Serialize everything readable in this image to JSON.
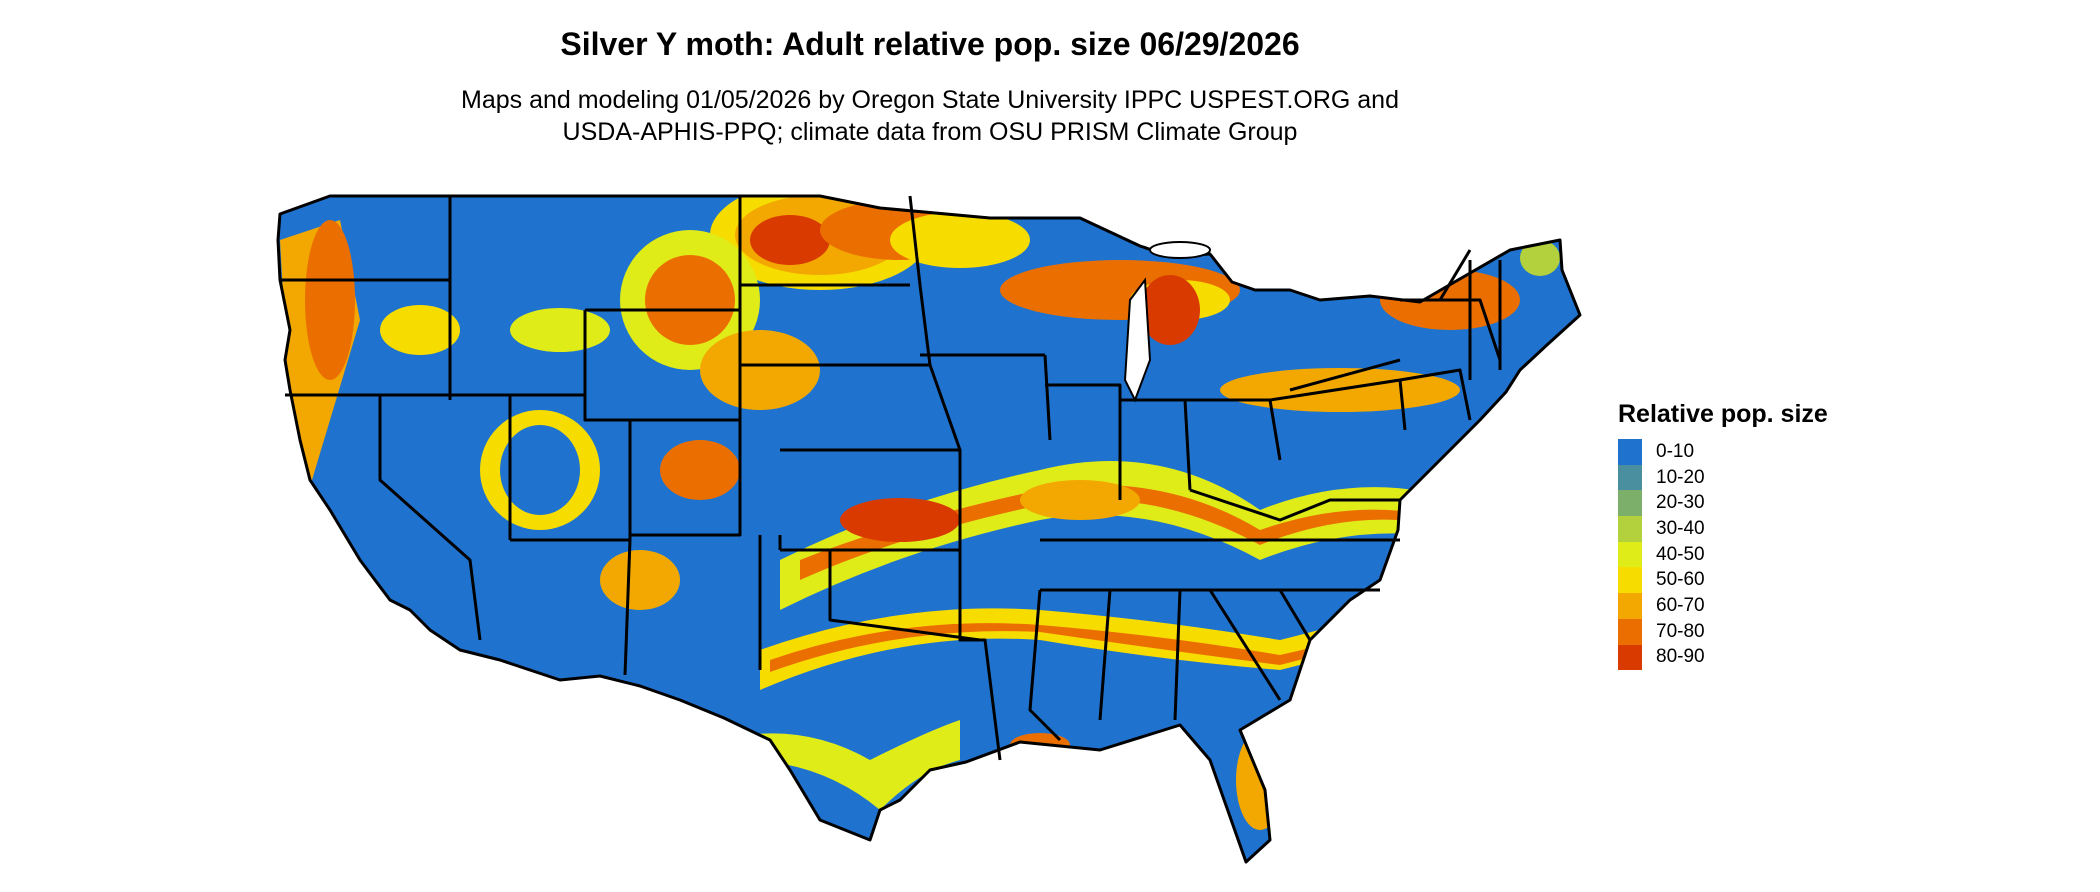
{
  "header": {
    "title": "Silver Y moth: Adult relative pop. size 06/29/2026",
    "subtitle_line1": "Maps and modeling 01/05/2026 by Oregon State University IPPC USPEST.ORG and",
    "subtitle_line2": "USDA-APHIS-PPQ; climate data from OSU PRISM Climate Group"
  },
  "legend": {
    "title": "Relative pop. size",
    "items": [
      {
        "label": "0-10",
        "color": "#1f73cf"
      },
      {
        "label": "10-20",
        "color": "#4a8fa0"
      },
      {
        "label": "20-30",
        "color": "#7caf6a"
      },
      {
        "label": "30-40",
        "color": "#b3d13c"
      },
      {
        "label": "40-50",
        "color": "#e0ec18"
      },
      {
        "label": "50-60",
        "color": "#f7dc00"
      },
      {
        "label": "60-70",
        "color": "#f2a800"
      },
      {
        "label": "70-80",
        "color": "#eb6f00"
      },
      {
        "label": "80-90",
        "color": "#d93a00"
      }
    ]
  },
  "map": {
    "region": "contiguous-united-states",
    "boundaries": "state-outlines",
    "base_color": "#1f73cf",
    "outline_color": "#000000"
  }
}
